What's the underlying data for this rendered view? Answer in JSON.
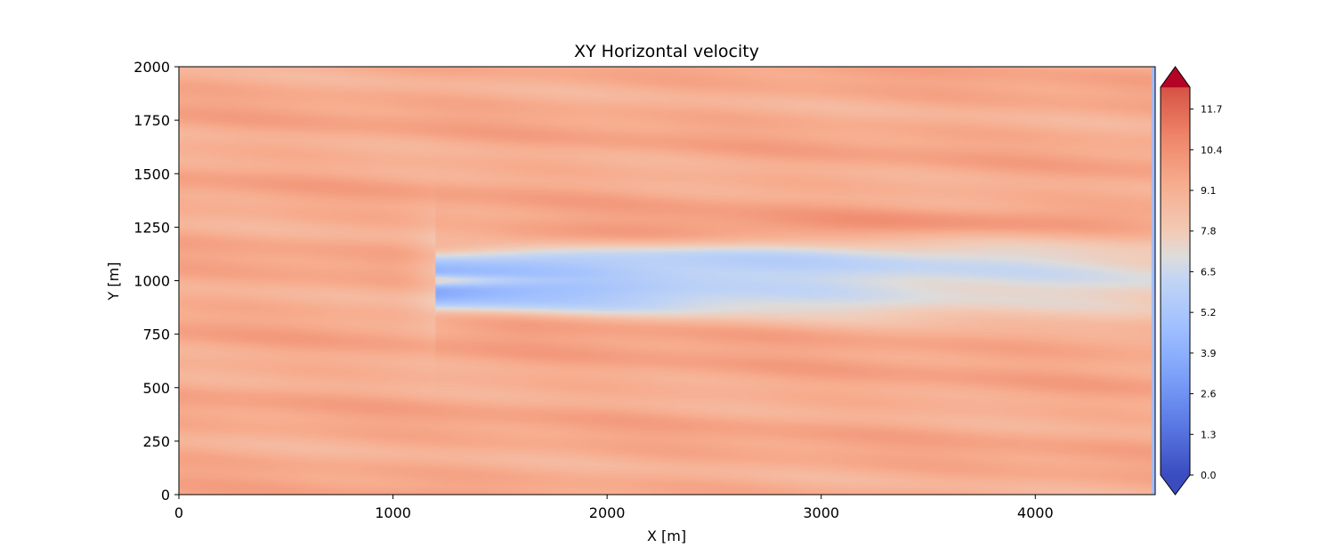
{
  "chart_data": {
    "type": "heatmap",
    "title": "XY Horizontal velocity",
    "xlabel": "X [m]",
    "ylabel": "Y [m]",
    "xlim": [
      0,
      4560
    ],
    "ylim": [
      0,
      2000
    ],
    "xticks": [
      0,
      1000,
      2000,
      3000,
      4000
    ],
    "yticks": [
      0,
      250,
      500,
      750,
      1000,
      1250,
      1500,
      1750,
      2000
    ],
    "grid": false,
    "colormap": "coolwarm",
    "colorbar": {
      "min": 0.0,
      "max": 12.4,
      "extend": "both",
      "ticks": [
        0.0,
        1.3,
        2.6,
        3.9,
        5.2,
        6.5,
        7.8,
        9.1,
        10.4,
        11.7
      ],
      "tick_labels": [
        "0.0",
        "1.3",
        "2.6",
        "3.9",
        "5.2",
        "6.5",
        "7.8",
        "9.1",
        "10.4",
        "11.7"
      ]
    },
    "field": {
      "freestream_velocity": 9.3,
      "rotor_x": 1200,
      "rotor_center_y": 1000,
      "rotor_diameter": 260,
      "wake_min_velocity": 4.8,
      "outflow_edge_x": 4540,
      "outflow_edge_velocity": 4.6
    }
  }
}
